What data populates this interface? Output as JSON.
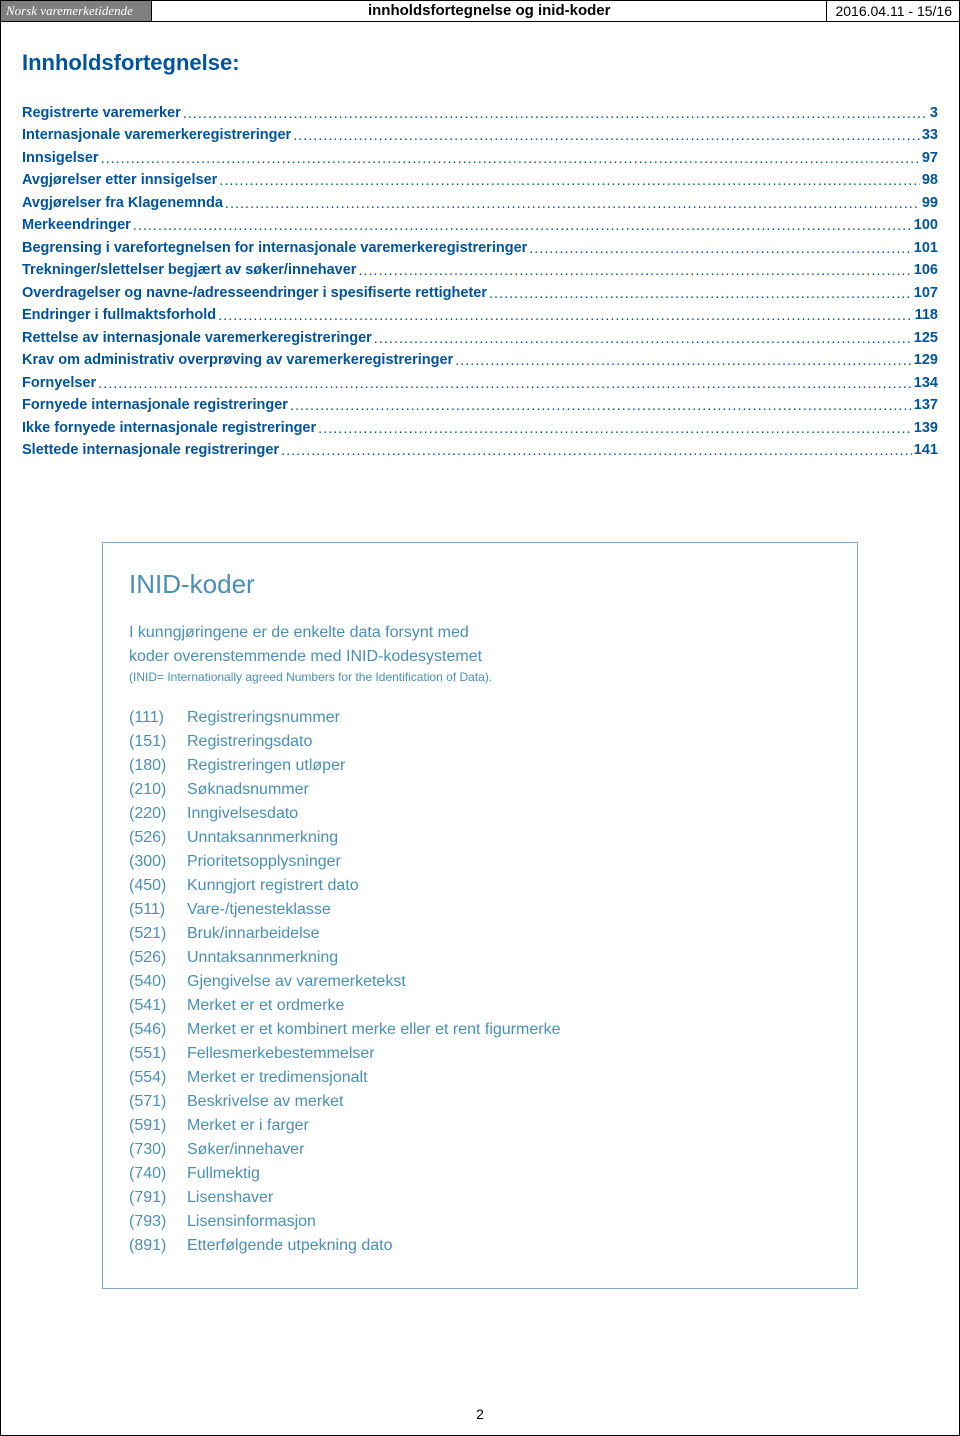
{
  "header": {
    "logo_text": "Norsk varemerketidende",
    "title": "innholdsfortegnelse og inid-koder",
    "date": "2016.04.11 - 15/16"
  },
  "main_heading": "Innholdsfortegnelse:",
  "toc": [
    {
      "label": "Registrerte varemerker",
      "page": "3"
    },
    {
      "label": "Internasjonale varemerkeregistreringer",
      "page": "33"
    },
    {
      "label": "Innsigelser",
      "page": "97"
    },
    {
      "label": "Avgjørelser etter innsigelser",
      "page": "98"
    },
    {
      "label": "Avgjørelser fra Klagenemnda",
      "page": "99"
    },
    {
      "label": "Merkeendringer",
      "page": "100"
    },
    {
      "label": "Begrensing i varefortegnelsen for internasjonale varemerkeregistreringer",
      "page": "101"
    },
    {
      "label": "Trekninger/slettelser begjært av søker/innehaver",
      "page": "106"
    },
    {
      "label": "Overdragelser og navne-/adresseendringer i spesifiserte rettigheter",
      "page": "107"
    },
    {
      "label": "Endringer i fullmaktsforhold",
      "page": "118"
    },
    {
      "label": "Rettelse av internasjonale varemerkeregistreringer",
      "page": "125"
    },
    {
      "label": "Krav om administrativ overprøving av varemerkeregistreringer",
      "page": "129"
    },
    {
      "label": "Fornyelser",
      "page": "134"
    },
    {
      "label": "Fornyede internasjonale registreringer",
      "page": "137"
    },
    {
      "label": "Ikke fornyede internasjonale registreringer",
      "page": "139"
    },
    {
      "label": "Slettede internasjonale registreringer",
      "page": "141"
    }
  ],
  "inid_box": {
    "title": "INID-koder",
    "intro_l1": "I kunngjøringene er de enkelte data forsynt med",
    "intro_l2": "koder overenstemmende med INID-kodesystemet",
    "note": "(INID= Internationally agreed Numbers for the Identification of Data).",
    "items": [
      {
        "code": "(111)",
        "label": "Registreringsnummer"
      },
      {
        "code": "(151)",
        "label": "Registreringsdato"
      },
      {
        "code": "(180)",
        "label": "Registreringen utløper"
      },
      {
        "code": "(210)",
        "label": "Søknadsnummer"
      },
      {
        "code": "(220)",
        "label": "Inngivelsesdato"
      },
      {
        "code": "(526)",
        "label": " Unntaksannmerkning"
      },
      {
        "code": "(300)",
        "label": "Prioritetsopplysninger"
      },
      {
        "code": "(450)",
        "label": "Kunngjort registrert dato"
      },
      {
        "code": "(511)",
        "label": "Vare-/tjenesteklasse"
      },
      {
        "code": "(521)",
        "label": "Bruk/innarbeidelse"
      },
      {
        "code": "(526)",
        "label": " Unntaksannmerkning"
      },
      {
        "code": "(540)",
        "label": "Gjengivelse av varemerketekst"
      },
      {
        "code": "(541)",
        "label": "Merket er et ordmerke"
      },
      {
        "code": "(546)",
        "label": "Merket er et kombinert merke eller et rent figurmerke"
      },
      {
        "code": "(551)",
        "label": "Fellesmerkebestemmelser"
      },
      {
        "code": "(554)",
        "label": "Merket er tredimensjonalt"
      },
      {
        "code": "(571)",
        "label": "Beskrivelse av merket"
      },
      {
        "code": "(591)",
        "label": "Merket er i farger"
      },
      {
        "code": "(730)",
        "label": "Søker/innehaver"
      },
      {
        "code": "(740)",
        "label": "Fullmektig"
      },
      {
        "code": "(791)",
        "label": "Lisenshaver"
      },
      {
        "code": "(793)",
        "label": "Lisensinformasjon"
      },
      {
        "code": "(891)",
        "label": "Etterfølgende utpekning dato"
      }
    ]
  },
  "footer_page": "2",
  "colors": {
    "toc_blue": "#00539d",
    "inid_blue": "#4a8fb8",
    "inid_border": "#7fa7c9",
    "header_gray": "#7f7f7f"
  }
}
